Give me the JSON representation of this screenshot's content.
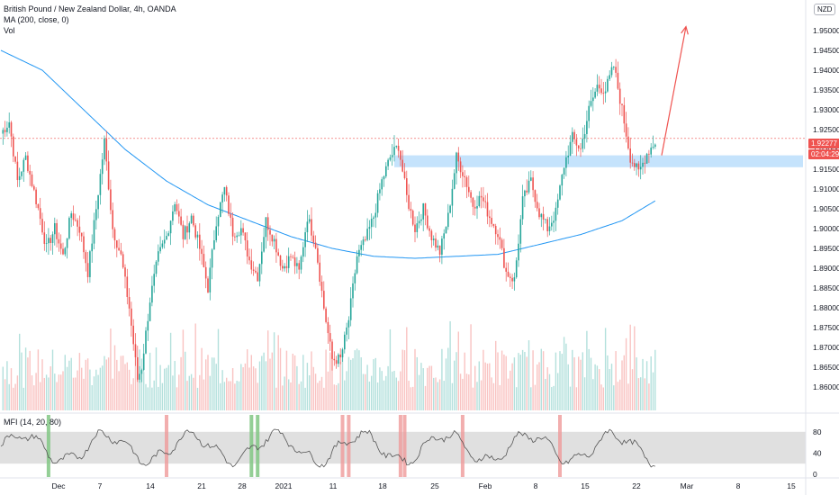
{
  "legend": {
    "title": "British Pound / New Zealand Dollar, 4h, OANDA",
    "ma": "MA (200, close, 0)",
    "vol": "Vol",
    "mfi": "MFI (14, 20, 80)"
  },
  "badges": {
    "currency": "NZD",
    "last_price": "1.92277",
    "countdown": "02:04:29"
  },
  "colors": {
    "up": "#26a69a",
    "down": "#ef5350",
    "ma": "#2196f3",
    "zone": "#bbdefb",
    "arrow": "#ef5350",
    "mfi_band": "#e0e0e0",
    "mfi_over": "#ef9a9a",
    "mfi_under": "#81c784"
  },
  "chart_data": {
    "type": "candlestick",
    "symbol": "GBPNZD",
    "price_axis": {
      "min": 1.855,
      "max": 1.955,
      "ticks": [
        "1.86000",
        "1.86500",
        "1.87000",
        "1.87500",
        "1.88000",
        "1.88500",
        "1.89000",
        "1.89500",
        "1.90000",
        "1.90500",
        "1.91000",
        "1.91500",
        "1.92000",
        "1.92500",
        "1.93000",
        "1.93500",
        "1.94000",
        "1.94500",
        "1.95000"
      ]
    },
    "time_axis": {
      "labels": [
        "Dec",
        "7",
        "14",
        "21",
        "28",
        "2021",
        "11",
        "18",
        "25",
        "Feb",
        "8",
        "15",
        "22",
        "Mar",
        "8",
        "15"
      ]
    },
    "price_path": [
      [
        0,
        1.924
      ],
      [
        4,
        1.927
      ],
      [
        8,
        1.912
      ],
      [
        12,
        1.918
      ],
      [
        18,
        1.905
      ],
      [
        22,
        1.895
      ],
      [
        26,
        1.9
      ],
      [
        30,
        1.893
      ],
      [
        34,
        1.904
      ],
      [
        38,
        1.9
      ],
      [
        42,
        1.889
      ],
      [
        46,
        1.905
      ],
      [
        50,
        1.922
      ],
      [
        54,
        1.9
      ],
      [
        58,
        1.893
      ],
      [
        62,
        1.88
      ],
      [
        66,
        1.862
      ],
      [
        68,
        1.865
      ],
      [
        72,
        1.882
      ],
      [
        76,
        1.893
      ],
      [
        80,
        1.898
      ],
      [
        84,
        1.907
      ],
      [
        88,
        1.898
      ],
      [
        92,
        1.903
      ],
      [
        96,
        1.895
      ],
      [
        100,
        1.885
      ],
      [
        104,
        1.902
      ],
      [
        108,
        1.91
      ],
      [
        112,
        1.899
      ],
      [
        116,
        1.9
      ],
      [
        120,
        1.892
      ],
      [
        124,
        1.888
      ],
      [
        128,
        1.902
      ],
      [
        132,
        1.897
      ],
      [
        136,
        1.89
      ],
      [
        140,
        1.893
      ],
      [
        144,
        1.889
      ],
      [
        148,
        1.903
      ],
      [
        152,
        1.896
      ],
      [
        156,
        1.88
      ],
      [
        160,
        1.867
      ],
      [
        164,
        1.867
      ],
      [
        168,
        1.877
      ],
      [
        172,
        1.893
      ],
      [
        176,
        1.897
      ],
      [
        180,
        1.903
      ],
      [
        184,
        1.912
      ],
      [
        188,
        1.918
      ],
      [
        192,
        1.921
      ],
      [
        196,
        1.908
      ],
      [
        200,
        1.9
      ],
      [
        204,
        1.905
      ],
      [
        208,
        1.898
      ],
      [
        212,
        1.894
      ],
      [
        216,
        1.903
      ],
      [
        220,
        1.918
      ],
      [
        224,
        1.913
      ],
      [
        228,
        1.906
      ],
      [
        232,
        1.908
      ],
      [
        236,
        1.903
      ],
      [
        240,
        1.899
      ],
      [
        244,
        1.889
      ],
      [
        248,
        1.887
      ],
      [
        252,
        1.907
      ],
      [
        256,
        1.912
      ],
      [
        260,
        1.904
      ],
      [
        264,
        1.9
      ],
      [
        268,
        1.904
      ],
      [
        272,
        1.916
      ],
      [
        276,
        1.923
      ],
      [
        280,
        1.92
      ],
      [
        284,
        1.93
      ],
      [
        288,
        1.936
      ],
      [
        292,
        1.935
      ],
      [
        296,
        1.941
      ],
      [
        300,
        1.93
      ],
      [
        304,
        1.918
      ],
      [
        308,
        1.914
      ],
      [
        312,
        1.919
      ],
      [
        316,
        1.922
      ]
    ],
    "ma200_path": [
      [
        0,
        1.945
      ],
      [
        20,
        1.94
      ],
      [
        40,
        1.93
      ],
      [
        60,
        1.92
      ],
      [
        80,
        1.912
      ],
      [
        100,
        1.906
      ],
      [
        120,
        1.902
      ],
      [
        140,
        1.898
      ],
      [
        160,
        1.895
      ],
      [
        180,
        1.893
      ],
      [
        200,
        1.8925
      ],
      [
        220,
        1.893
      ],
      [
        240,
        1.8935
      ],
      [
        260,
        1.896
      ],
      [
        280,
        1.8985
      ],
      [
        300,
        1.902
      ],
      [
        316,
        1.907
      ]
    ],
    "resistance_zone": {
      "low": 1.9155,
      "high": 1.9185
    },
    "arrow": {
      "from": [
        317,
        1.9185
      ],
      "to": [
        330,
        1.951
      ]
    },
    "mfi": {
      "ticks": [
        0,
        40,
        80
      ],
      "band": [
        20,
        80
      ],
      "overbought_bars": [
        80,
        165,
        168,
        193,
        195,
        223,
        270
      ],
      "oversold_bars": [
        23,
        121,
        124
      ]
    }
  }
}
